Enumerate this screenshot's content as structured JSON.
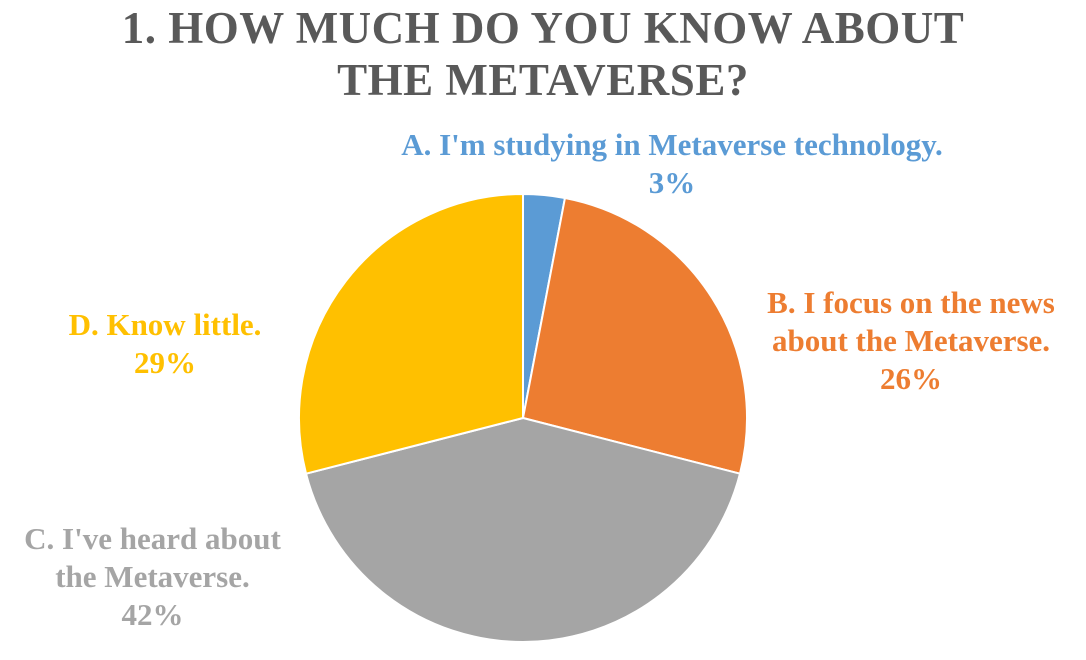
{
  "chart_data": {
    "type": "pie",
    "title_lines": [
      "1. HOW MUCH DO YOU KNOW ABOUT",
      "THE METAVERSE?"
    ],
    "slices": [
      {
        "name": "A. I'm studying in Metaverse technology.",
        "label_lines": [
          "A. I'm studying in Metaverse technology."
        ],
        "value": 3,
        "value_label": "3%",
        "color": "#5B9BD5"
      },
      {
        "name": "B. I focus on the news about the Metaverse.",
        "label_lines": [
          "B. I focus on the news",
          "about the Metaverse."
        ],
        "value": 26,
        "value_label": "26%",
        "color": "#ED7D31"
      },
      {
        "name": "C. I've heard about the Metaverse.",
        "label_lines": [
          "C. I've heard about",
          "the Metaverse."
        ],
        "value": 42,
        "value_label": "42%",
        "color": "#A5A5A5"
      },
      {
        "name": "D. Know little.",
        "label_lines": [
          "D. Know little."
        ],
        "value": 29,
        "value_label": "29%",
        "color": "#FFC000"
      }
    ],
    "start_angle_deg": 0,
    "direction": "clockwise",
    "title_color": "#595959"
  }
}
